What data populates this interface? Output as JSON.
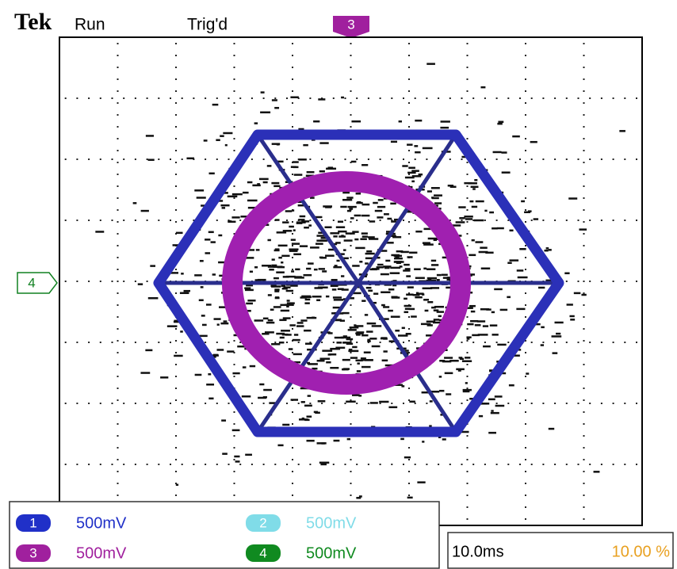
{
  "header": {
    "brand": "Tek",
    "status": "Run",
    "trigger_status": "Trig'd"
  },
  "markers": {
    "trigger_position": "3",
    "ground_level": "4"
  },
  "channels": [
    {
      "label": "1",
      "scale": "500mV"
    },
    {
      "label": "2",
      "scale": "500mV"
    },
    {
      "label": "3",
      "scale": "500mV"
    },
    {
      "label": "4",
      "scale": "500mV"
    }
  ],
  "timebase": {
    "scale": "10.0ms",
    "trigger_position": "10.00 %"
  }
}
